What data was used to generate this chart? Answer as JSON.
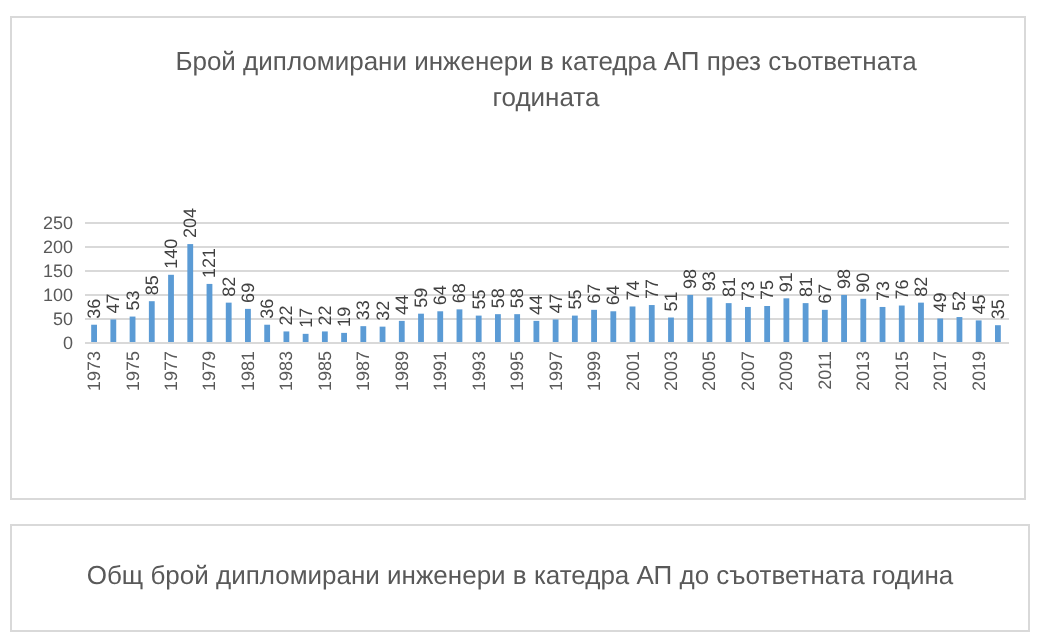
{
  "chart_data": [
    {
      "type": "bar",
      "title": "Брой дипломирани инженери в катедра АП през съответната годината",
      "categories": [
        "1973",
        null,
        "1975",
        null,
        "1977",
        null,
        "1979",
        null,
        "1981",
        null,
        "1983",
        null,
        "1985",
        null,
        "1987",
        null,
        "1989",
        null,
        "1991",
        null,
        "1993",
        null,
        "1995",
        null,
        "1997",
        null,
        "1999",
        null,
        "2001",
        null,
        "2003",
        null,
        "2005",
        null,
        "2007",
        null,
        "2009",
        null,
        "2011",
        null,
        "2013",
        null,
        "2015",
        null,
        "2017",
        null,
        "2019",
        null
      ],
      "values": [
        36,
        47,
        53,
        85,
        140,
        204,
        121,
        82,
        69,
        36,
        22,
        17,
        22,
        19,
        33,
        32,
        44,
        59,
        64,
        68,
        55,
        58,
        58,
        44,
        47,
        55,
        67,
        64,
        74,
        77,
        51,
        98,
        93,
        81,
        73,
        75,
        91,
        81,
        67,
        98,
        90,
        73,
        76,
        82,
        49,
        52,
        45,
        35
      ],
      "color": "#5b9bd5",
      "ylim": [
        0,
        250
      ],
      "yticks": [
        0,
        50,
        100,
        150,
        200,
        250
      ],
      "grid": "y",
      "data_labels": true
    },
    {
      "type": "other",
      "title": "Общ брой дипломирани инженери в катедра АП до съответната година"
    }
  ]
}
